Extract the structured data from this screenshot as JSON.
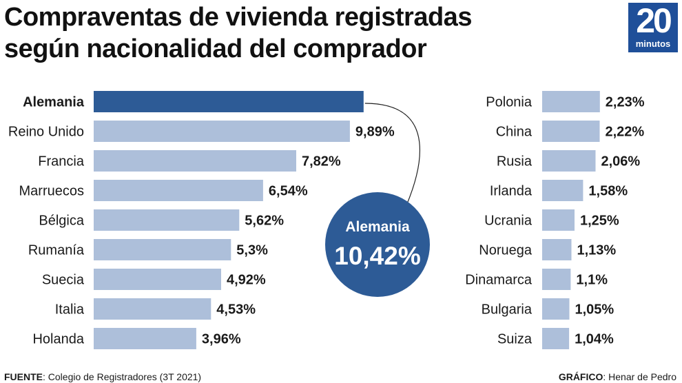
{
  "header": {
    "title_line1": "Compraventas de vivienda registradas",
    "title_line2": "según nacionalidad del comprador"
  },
  "logo": {
    "number": "20",
    "word": "minutos"
  },
  "colors": {
    "bar": "#adbfda",
    "highlight_bar": "#2d5b96",
    "bubble": "#2d5b96",
    "text": "#1a1a1a"
  },
  "chart_data": {
    "type": "bar",
    "orientation": "horizontal",
    "title": "Compraventas de vivienda registradas según nacionalidad del comprador",
    "unit": "%",
    "highlight": {
      "category": "Alemania",
      "label": "Alemania",
      "value_label": "10,42%",
      "value": 10.42
    },
    "panels": [
      {
        "name": "left",
        "categories": [
          "Alemania",
          "Reino Unido",
          "Francia",
          "Marruecos",
          "Bélgica",
          "Rumanía",
          "Suecia",
          "Italia",
          "Holanda"
        ],
        "values": [
          10.42,
          9.89,
          7.82,
          6.54,
          5.62,
          5.3,
          4.92,
          4.53,
          3.96
        ],
        "labels": [
          "",
          "9,89%",
          "7,82%",
          "6,54%",
          "5,62%",
          "5,3%",
          "4,92%",
          "4,53%",
          "3,96%"
        ]
      },
      {
        "name": "right",
        "categories": [
          "Polonia",
          "China",
          "Rusia",
          "Irlanda",
          "Ucrania",
          "Noruega",
          "Dinamarca",
          "Bulgaria",
          "Suiza"
        ],
        "values": [
          2.23,
          2.22,
          2.06,
          1.58,
          1.25,
          1.13,
          1.1,
          1.05,
          1.04
        ],
        "labels": [
          "2,23%",
          "2,22%",
          "2,06%",
          "1,58%",
          "1,25%",
          "1,13%",
          "1,1%",
          "1,05%",
          "1,04%"
        ]
      }
    ]
  },
  "footer": {
    "source_label": "FUENTE",
    "source_text": ": Colegio de Registradores (3T 2021)",
    "credit_label": "GRÁFICO",
    "credit_text": ": Henar de Pedro"
  }
}
